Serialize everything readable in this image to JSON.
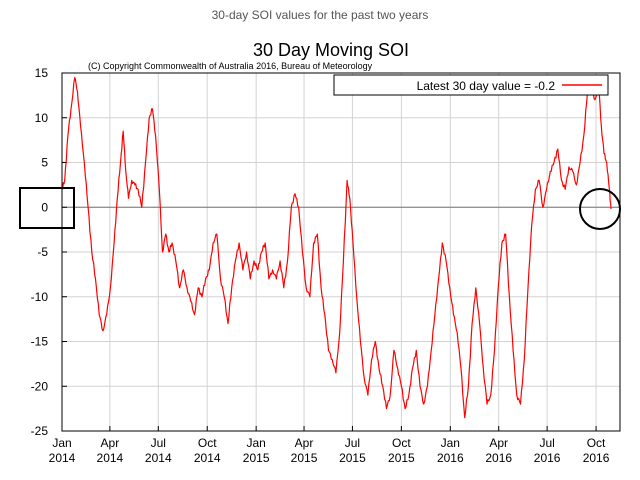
{
  "caption": "30-day SOI values for the past two years",
  "chart_data": {
    "type": "line",
    "title": "30 Day Moving SOI",
    "subtitle": "(C) Copyright Commonwealth of Australia 2016, Bureau of Meteorology",
    "xlabel": "",
    "ylabel": "",
    "ylim": [
      -25,
      15
    ],
    "yticks": [
      15,
      10,
      5,
      0,
      -5,
      -10,
      -15,
      -20,
      -25
    ],
    "x_start": "2014-01-01",
    "x_end": "2016-11-15",
    "xticks": [
      {
        "date": "2014-01-01",
        "month": "Jan",
        "year": "2014"
      },
      {
        "date": "2014-04-01",
        "month": "Apr",
        "year": "2014"
      },
      {
        "date": "2014-07-01",
        "month": "Jul",
        "year": "2014"
      },
      {
        "date": "2014-10-01",
        "month": "Oct",
        "year": "2014"
      },
      {
        "date": "2015-01-01",
        "month": "Jan",
        "year": "2015"
      },
      {
        "date": "2015-04-01",
        "month": "Apr",
        "year": "2015"
      },
      {
        "date": "2015-07-01",
        "month": "Jul",
        "year": "2015"
      },
      {
        "date": "2015-10-01",
        "month": "Oct",
        "year": "2015"
      },
      {
        "date": "2016-01-01",
        "month": "Jan",
        "year": "2016"
      },
      {
        "date": "2016-04-01",
        "month": "Apr",
        "year": "2016"
      },
      {
        "date": "2016-07-01",
        "month": "Jul",
        "year": "2016"
      },
      {
        "date": "2016-10-01",
        "month": "Oct",
        "year": "2016"
      }
    ],
    "grid": true,
    "legend_position": "top-right",
    "series": [
      {
        "name": "Latest 30 day value = -0.2",
        "color": "#ff0000",
        "points": [
          [
            "2014-01-01",
            2
          ],
          [
            "2014-01-06",
            3
          ],
          [
            "2014-01-12",
            8
          ],
          [
            "2014-01-18",
            11
          ],
          [
            "2014-01-25",
            14.5
          ],
          [
            "2014-01-30",
            13
          ],
          [
            "2014-02-05",
            9
          ],
          [
            "2014-02-12",
            5
          ],
          [
            "2014-02-19",
            0
          ],
          [
            "2014-02-26",
            -5
          ],
          [
            "2014-03-05",
            -8
          ],
          [
            "2014-03-12",
            -12
          ],
          [
            "2014-03-19",
            -13.8
          ],
          [
            "2014-03-26",
            -12
          ],
          [
            "2014-04-02",
            -9
          ],
          [
            "2014-04-09",
            -4
          ],
          [
            "2014-04-15",
            1
          ],
          [
            "2014-04-21",
            5
          ],
          [
            "2014-04-26",
            8.5
          ],
          [
            "2014-05-01",
            4
          ],
          [
            "2014-05-06",
            1
          ],
          [
            "2014-05-12",
            3
          ],
          [
            "2014-05-18",
            2.5
          ],
          [
            "2014-05-24",
            2
          ],
          [
            "2014-05-31",
            0
          ],
          [
            "2014-06-07",
            5
          ],
          [
            "2014-06-14",
            10
          ],
          [
            "2014-06-20",
            11
          ],
          [
            "2014-06-26",
            8
          ],
          [
            "2014-07-03",
            2
          ],
          [
            "2014-07-09",
            -5
          ],
          [
            "2014-07-15",
            -3
          ],
          [
            "2014-07-21",
            -5
          ],
          [
            "2014-07-27",
            -4
          ],
          [
            "2014-08-03",
            -6
          ],
          [
            "2014-08-10",
            -9
          ],
          [
            "2014-08-17",
            -7
          ],
          [
            "2014-08-24",
            -9
          ],
          [
            "2014-08-31",
            -10.5
          ],
          [
            "2014-09-07",
            -12
          ],
          [
            "2014-09-14",
            -9
          ],
          [
            "2014-09-21",
            -10
          ],
          [
            "2014-09-28",
            -8
          ],
          [
            "2014-10-05",
            -7
          ],
          [
            "2014-10-12",
            -4
          ],
          [
            "2014-10-19",
            -3
          ],
          [
            "2014-10-26",
            -8
          ],
          [
            "2014-11-02",
            -10
          ],
          [
            "2014-11-09",
            -13
          ],
          [
            "2014-11-16",
            -9
          ],
          [
            "2014-11-23",
            -6
          ],
          [
            "2014-11-30",
            -4
          ],
          [
            "2014-12-07",
            -7
          ],
          [
            "2014-12-14",
            -5
          ],
          [
            "2014-12-21",
            -8
          ],
          [
            "2014-12-28",
            -6
          ],
          [
            "2015-01-04",
            -7
          ],
          [
            "2015-01-11",
            -5
          ],
          [
            "2015-01-18",
            -4
          ],
          [
            "2015-01-25",
            -8
          ],
          [
            "2015-02-01",
            -7
          ],
          [
            "2015-02-08",
            -8
          ],
          [
            "2015-02-15",
            -6
          ],
          [
            "2015-02-22",
            -9
          ],
          [
            "2015-03-01",
            -6
          ],
          [
            "2015-03-08",
            0
          ],
          [
            "2015-03-15",
            1.5
          ],
          [
            "2015-03-22",
            0
          ],
          [
            "2015-03-29",
            -5
          ],
          [
            "2015-04-05",
            -9
          ],
          [
            "2015-04-12",
            -10
          ],
          [
            "2015-04-19",
            -4
          ],
          [
            "2015-04-26",
            -3
          ],
          [
            "2015-05-03",
            -9
          ],
          [
            "2015-05-10",
            -12
          ],
          [
            "2015-05-17",
            -16
          ],
          [
            "2015-05-24",
            -17
          ],
          [
            "2015-05-31",
            -18.5
          ],
          [
            "2015-06-07",
            -14
          ],
          [
            "2015-06-14",
            -6
          ],
          [
            "2015-06-21",
            3
          ],
          [
            "2015-06-26",
            1
          ],
          [
            "2015-07-02",
            -4
          ],
          [
            "2015-07-09",
            -10
          ],
          [
            "2015-07-16",
            -15
          ],
          [
            "2015-07-23",
            -19
          ],
          [
            "2015-07-30",
            -21
          ],
          [
            "2015-08-06",
            -17
          ],
          [
            "2015-08-13",
            -15
          ],
          [
            "2015-08-20",
            -18
          ],
          [
            "2015-08-27",
            -20
          ],
          [
            "2015-09-03",
            -22.5
          ],
          [
            "2015-09-10",
            -21
          ],
          [
            "2015-09-17",
            -16
          ],
          [
            "2015-09-24",
            -18
          ],
          [
            "2015-10-01",
            -20
          ],
          [
            "2015-10-08",
            -22.5
          ],
          [
            "2015-10-15",
            -21
          ],
          [
            "2015-10-22",
            -18
          ],
          [
            "2015-10-29",
            -16
          ],
          [
            "2015-11-05",
            -20
          ],
          [
            "2015-11-12",
            -22
          ],
          [
            "2015-11-19",
            -20
          ],
          [
            "2015-11-26",
            -16
          ],
          [
            "2015-12-03",
            -12
          ],
          [
            "2015-12-10",
            -8
          ],
          [
            "2015-12-17",
            -4
          ],
          [
            "2015-12-24",
            -6
          ],
          [
            "2015-12-31",
            -9
          ],
          [
            "2016-01-07",
            -12
          ],
          [
            "2016-01-14",
            -14
          ],
          [
            "2016-01-21",
            -18
          ],
          [
            "2016-01-28",
            -23.5
          ],
          [
            "2016-02-04",
            -20
          ],
          [
            "2016-02-11",
            -13
          ],
          [
            "2016-02-18",
            -9
          ],
          [
            "2016-02-25",
            -13
          ],
          [
            "2016-03-03",
            -18
          ],
          [
            "2016-03-10",
            -22
          ],
          [
            "2016-03-17",
            -21
          ],
          [
            "2016-03-24",
            -16
          ],
          [
            "2016-03-31",
            -9
          ],
          [
            "2016-04-07",
            -4
          ],
          [
            "2016-04-14",
            -3
          ],
          [
            "2016-04-21",
            -10
          ],
          [
            "2016-04-28",
            -16
          ],
          [
            "2016-05-05",
            -21
          ],
          [
            "2016-05-12",
            -22
          ],
          [
            "2016-05-19",
            -17
          ],
          [
            "2016-05-26",
            -9
          ],
          [
            "2016-06-02",
            -2
          ],
          [
            "2016-06-09",
            2
          ],
          [
            "2016-06-16",
            3
          ],
          [
            "2016-06-23",
            0
          ],
          [
            "2016-06-30",
            2
          ],
          [
            "2016-07-07",
            4
          ],
          [
            "2016-07-14",
            5
          ],
          [
            "2016-07-21",
            6.5
          ],
          [
            "2016-07-28",
            3
          ],
          [
            "2016-08-04",
            2
          ],
          [
            "2016-08-11",
            4.5
          ],
          [
            "2016-08-18",
            4
          ],
          [
            "2016-08-25",
            2.5
          ],
          [
            "2016-09-01",
            5
          ],
          [
            "2016-09-08",
            8
          ],
          [
            "2016-09-15",
            13
          ],
          [
            "2016-09-22",
            13.5
          ],
          [
            "2016-09-29",
            12
          ],
          [
            "2016-10-06",
            13.5
          ],
          [
            "2016-10-11",
            9
          ],
          [
            "2016-10-16",
            6
          ],
          [
            "2016-10-21",
            5
          ],
          [
            "2016-10-26",
            2
          ],
          [
            "2016-10-29",
            -0.2
          ]
        ]
      }
    ]
  }
}
